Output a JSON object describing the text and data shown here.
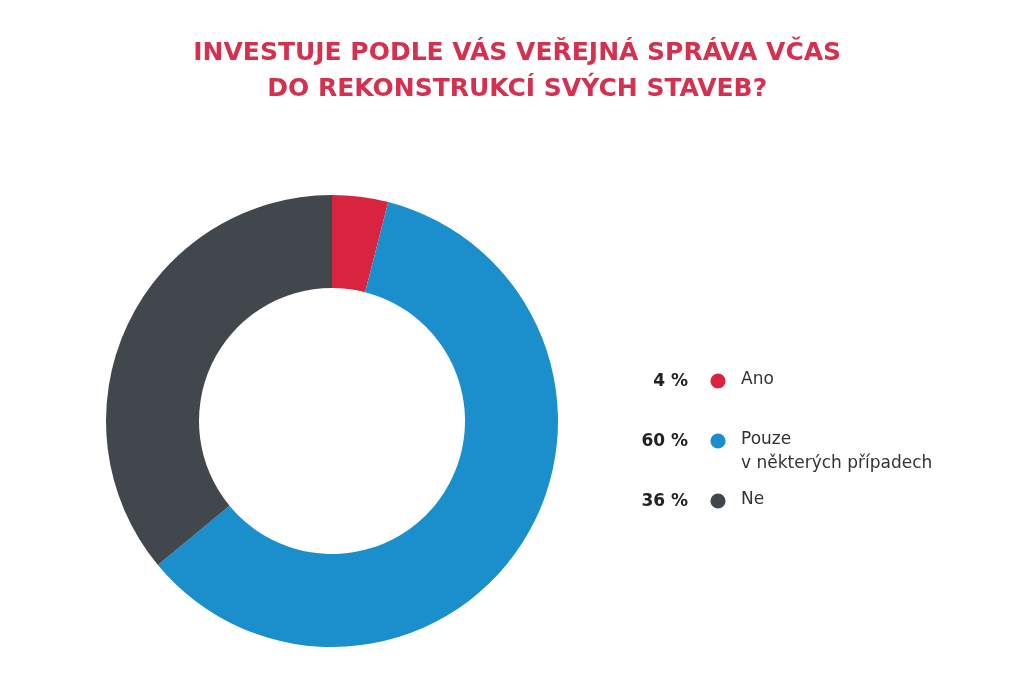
{
  "chart_data": {
    "type": "donut",
    "title": "INVESTUJE PODLE VÁS VEŘEJNÁ SPRÁVA VČAS DO REKONSTRUKCÍ SVÝCH STAVEB?",
    "categories": [
      "Ano",
      "Pouze v některých případech",
      "Ne"
    ],
    "values": [
      4,
      60,
      36
    ],
    "colors": [
      "#d9243f",
      "#1a8fcc",
      "#41474d"
    ],
    "value_labels": [
      "4 %",
      "60 %",
      "36 %"
    ],
    "legend": "right"
  }
}
